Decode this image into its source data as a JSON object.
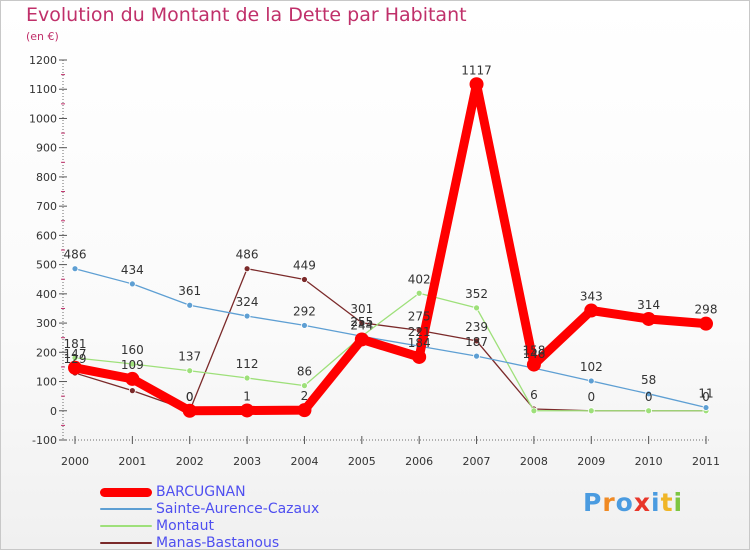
{
  "title": "Evolution du Montant de la Dette par Habitant",
  "unit": "(en €)",
  "logo": {
    "letters": [
      "P",
      "r",
      "o",
      "x",
      "i",
      "t",
      "i"
    ],
    "colors": [
      "#4a9be0",
      "#f08a24",
      "#4a9be0",
      "#e8362a",
      "#4a9be0",
      "#f0b628",
      "#7dc642"
    ]
  },
  "chart_data": {
    "type": "line",
    "categories": [
      "2000",
      "2001",
      "2002",
      "2003",
      "2004",
      "2005",
      "2006",
      "2007",
      "2008",
      "2009",
      "2010",
      "2011"
    ],
    "ylim": [
      -100,
      1200
    ],
    "yticks": [
      -100,
      0,
      100,
      200,
      300,
      400,
      500,
      600,
      700,
      800,
      900,
      1000,
      1100,
      1200
    ],
    "grid": false,
    "legend_position": "bottom-left",
    "series": [
      {
        "name": "Manas-Bastanous",
        "color": "#7b2a2a",
        "values": [
          129,
          69,
          0,
          486,
          449,
          301,
          275,
          239,
          6,
          0,
          0,
          0
        ],
        "labels": [
          "129",
          "",
          "0",
          "486",
          "449",
          "301",
          "275",
          "239",
          "6",
          "0",
          "0",
          "0"
        ]
      },
      {
        "name": "Montaut",
        "color": "#9ee07a",
        "values": [
          181,
          160,
          137,
          112,
          86,
          255,
          402,
          352,
          0,
          0,
          0,
          0
        ],
        "labels": [
          "181",
          "160",
          "137",
          "112",
          "86",
          "255",
          "402",
          "352",
          "",
          "",
          "",
          ""
        ]
      },
      {
        "name": "Sainte-Aurence-Cazaux",
        "color": "#5e9fd3",
        "values": [
          486,
          434,
          361,
          324,
          292,
          255,
          221,
          187,
          146,
          102,
          58,
          11
        ],
        "labels": [
          "486",
          "434",
          "361",
          "324",
          "292",
          "255",
          "221",
          "187",
          "146",
          "102",
          "58",
          "11"
        ]
      },
      {
        "name": "BARCUGNAN",
        "color": "#ff0000",
        "values": [
          147,
          109,
          0,
          1,
          2,
          244,
          184,
          1117,
          158,
          343,
          314,
          298
        ],
        "labels": [
          "147",
          "109",
          "0",
          "1",
          "2",
          "244",
          "184",
          "1117",
          "158",
          "343",
          "314",
          "298"
        ]
      }
    ]
  }
}
